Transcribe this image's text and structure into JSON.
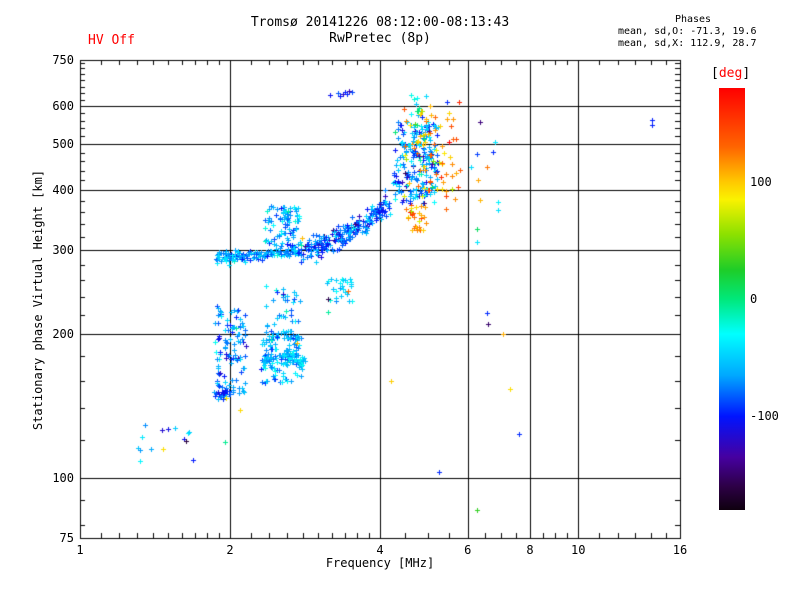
{
  "header": {
    "hv_status": "HV Off",
    "title_line1": "Tromsø 20141226 08:12:00-08:13:43",
    "title_line2": "RwPretec (8p)",
    "phases_heading": "Phases",
    "phases_o": "mean, sd,O: -71.3, 19.6",
    "phases_x": "mean, sd,X: 112.9, 28.7"
  },
  "colors": {
    "hv_status": "#ff0000",
    "axis": "#000000",
    "background": "#ffffff",
    "colorbar_label": "#ff0000"
  },
  "chart_data": {
    "type": "scatter",
    "title": "Tromsø 20141226 08:12:00-08:13:43",
    "subtitle": "RwPretec (8p)",
    "xlabel": "Frequency [MHz]",
    "ylabel": "Stationary phase Virtual Height [km]",
    "x_scale": "log",
    "y_scale": "log",
    "xlim": [
      1,
      16
    ],
    "ylim": [
      75,
      750
    ],
    "x_major_ticks": [
      1,
      2,
      4,
      6,
      8,
      10,
      16
    ],
    "x_gridlines": [
      2,
      4,
      6,
      8,
      10
    ],
    "x_minor_ticks": [
      1.1,
      1.2,
      1.3,
      1.4,
      1.5,
      1.6,
      1.7,
      1.8,
      1.9,
      2.2,
      2.4,
      2.6,
      2.8,
      3.0,
      3.2,
      3.4,
      3.6,
      3.8,
      4.5,
      5.0,
      5.5,
      6.5,
      7.0,
      7.5,
      8.5,
      9.0,
      9.5,
      11,
      12,
      13,
      14,
      15
    ],
    "y_major_ticks": [
      750,
      600,
      500,
      400,
      300,
      200,
      100,
      75
    ],
    "y_gridlines": [
      600,
      500,
      400,
      300,
      200,
      100
    ],
    "y_minor_ticks": [
      80,
      90,
      120,
      140,
      160,
      180,
      220,
      240,
      260,
      280,
      320,
      340,
      360,
      380,
      420,
      440,
      460,
      480,
      520,
      540,
      560,
      580,
      620,
      640,
      660,
      680,
      700,
      720,
      740
    ],
    "grid": true,
    "marker": "plus",
    "color_value": "phase [deg]",
    "stats": {
      "o_mean": -71.3,
      "o_sd": 19.6,
      "x_mean": 112.9,
      "x_sd": 28.7
    },
    "colorbar": {
      "label_open": "[",
      "label_text": "deg",
      "label_close": "]",
      "range": [
        -180,
        180
      ],
      "ticks": [
        100,
        0,
        -100
      ],
      "stops": [
        {
          "v": 180,
          "c": "#ff0000"
        },
        {
          "v": 130,
          "c": "#ff6400"
        },
        {
          "v": 100,
          "c": "#ffc800"
        },
        {
          "v": 85,
          "c": "#faf200"
        },
        {
          "v": 55,
          "c": "#8ce100"
        },
        {
          "v": 25,
          "c": "#1ecd28"
        },
        {
          "v": 0,
          "c": "#00e87a"
        },
        {
          "v": -30,
          "c": "#00ffff"
        },
        {
          "v": -65,
          "c": "#00a8ff"
        },
        {
          "v": -100,
          "c": "#0014ff"
        },
        {
          "v": -135,
          "c": "#4600a0"
        },
        {
          "v": -160,
          "c": "#2d0046"
        },
        {
          "v": -180,
          "c": "#0f000f"
        }
      ]
    },
    "clusters": [
      {
        "id": "f-trace-flat",
        "type": "trace",
        "pts": [
          [
            1.86,
            291
          ],
          [
            2.05,
            292
          ],
          [
            2.3,
            294
          ],
          [
            2.55,
            297
          ],
          [
            2.75,
            301
          ]
        ],
        "n": 150,
        "h_sd": 4,
        "phase_mean": -68,
        "phase_sd": 22
      },
      {
        "id": "f-trace-rise",
        "type": "trace",
        "pts": [
          [
            2.75,
            301
          ],
          [
            3.0,
            308
          ],
          [
            3.25,
            318
          ],
          [
            3.5,
            331
          ],
          [
            3.75,
            345
          ],
          [
            3.95,
            358
          ],
          [
            4.15,
            372
          ]
        ],
        "n": 240,
        "h_sd": 9,
        "phase_mean": -85,
        "phase_sd": 28
      },
      {
        "id": "blob-above-band",
        "type": "blob",
        "f": [
          2.33,
          2.76
        ],
        "h": [
          306,
          372
        ],
        "n": 85,
        "phase_mean": -60,
        "phase_sd": 22
      },
      {
        "id": "f2-spread-o",
        "type": "blob",
        "f": [
          4.25,
          5.25
        ],
        "h": [
          375,
          560
        ],
        "n": 200,
        "phase_mean": -72,
        "phase_sd": 30
      },
      {
        "id": "f2-spread-x",
        "type": "blob",
        "f": [
          4.45,
          5.8
        ],
        "h": [
          360,
          615
        ],
        "n": 70,
        "phase_mean": 113,
        "phase_sd": 30
      },
      {
        "id": "x-cusp",
        "type": "blob",
        "f": [
          4.5,
          4.95
        ],
        "h": [
          330,
          372
        ],
        "n": 30,
        "phase_mean": 108,
        "phase_sd": 18
      },
      {
        "id": "topside-spike",
        "type": "blob",
        "f": [
          4.6,
          4.87
        ],
        "h": [
          450,
          645
        ],
        "n": 26,
        "phase_mean": -45,
        "phase_sd": 35
      },
      {
        "id": "topside-spike-x",
        "type": "blob",
        "f": [
          4.62,
          4.95
        ],
        "h": [
          470,
          600
        ],
        "n": 7,
        "phase_mean": 100,
        "phase_sd": 15
      },
      {
        "id": "topside-streak",
        "type": "trace",
        "pts": [
          [
            3.17,
            628
          ],
          [
            3.62,
            655
          ]
        ],
        "n": 8,
        "h_sd": 4,
        "phase_mean": -105,
        "phase_sd": 18
      },
      {
        "id": "e-left",
        "type": "blob",
        "f": [
          1.86,
          2.17
        ],
        "h": [
          150,
          212
        ],
        "n": 80,
        "phase_mean": -75,
        "phase_sd": 26
      },
      {
        "id": "e-left-streak",
        "type": "trace",
        "pts": [
          [
            1.87,
            149
          ],
          [
            2.0,
            152
          ]
        ],
        "n": 22,
        "h_sd": 2,
        "phase_mean": -88,
        "phase_sd": 18
      },
      {
        "id": "e-mid-arc1",
        "type": "trace",
        "pts": [
          [
            2.32,
            175
          ],
          [
            2.5,
            181
          ],
          [
            2.68,
            180
          ],
          [
            2.8,
            174
          ]
        ],
        "n": 90,
        "h_sd": 3,
        "phase_mean": -52,
        "phase_sd": 16
      },
      {
        "id": "e-mid-arc2",
        "type": "trace",
        "pts": [
          [
            2.35,
            196
          ],
          [
            2.55,
            201
          ],
          [
            2.75,
            197
          ]
        ],
        "n": 45,
        "h_sd": 3,
        "phase_mean": -58,
        "phase_sd": 18
      },
      {
        "id": "e-mid-fill",
        "type": "blob",
        "f": [
          2.3,
          2.85
        ],
        "h": [
          158,
          206
        ],
        "n": 60,
        "phase_mean": -60,
        "phase_sd": 22
      },
      {
        "id": "e-upper-left",
        "type": "blob",
        "f": [
          1.83,
          2.2
        ],
        "h": [
          205,
          232
        ],
        "n": 22,
        "phase_mean": -72,
        "phase_sd": 24
      },
      {
        "id": "e-upper-mid",
        "type": "blob",
        "f": [
          2.35,
          2.8
        ],
        "h": [
          208,
          252
        ],
        "n": 30,
        "phase_mean": -62,
        "phase_sd": 22
      },
      {
        "id": "cyan-cluster-3mhz",
        "type": "blob",
        "f": [
          3.12,
          3.52
        ],
        "h": [
          234,
          262
        ],
        "n": 26,
        "phase_mean": -48,
        "phase_sd": 18
      },
      {
        "id": "low-left-sparse",
        "type": "blob",
        "f": [
          1.3,
          1.7
        ],
        "h": [
          108,
          130
        ],
        "n": 14,
        "phase_mean": -70,
        "phase_sd": 30
      }
    ],
    "singles": [
      [
        14.05,
        562,
        -98
      ],
      [
        14.05,
        549,
        -98
      ],
      [
        6.35,
        557,
        -145
      ],
      [
        6.8,
        506,
        -40
      ],
      [
        6.27,
        478,
        -90
      ],
      [
        6.75,
        482,
        -95
      ],
      [
        6.1,
        447,
        -45
      ],
      [
        6.56,
        448,
        125
      ],
      [
        6.3,
        420,
        110
      ],
      [
        6.35,
        382,
        105
      ],
      [
        6.9,
        378,
        -35
      ],
      [
        6.9,
        365,
        -42
      ],
      [
        6.25,
        332,
        8
      ],
      [
        6.25,
        312,
        -40
      ],
      [
        6.55,
        222,
        -95
      ],
      [
        6.6,
        210,
        -150
      ],
      [
        7.05,
        200,
        108
      ],
      [
        4.2,
        160,
        98
      ],
      [
        7.3,
        154,
        92
      ],
      [
        7.6,
        124,
        -95
      ],
      [
        6.26,
        86,
        30
      ],
      [
        5.25,
        103,
        -95
      ],
      [
        2.49,
        245,
        -95
      ],
      [
        3.45,
        247,
        128
      ],
      [
        3.15,
        237,
        -158
      ],
      [
        3.15,
        223,
        -8
      ],
      [
        2.79,
        318,
        104
      ],
      [
        2.73,
        192,
        106
      ],
      [
        1.96,
        147,
        88
      ],
      [
        2.09,
        139,
        94
      ],
      [
        1.47,
        115,
        92
      ],
      [
        1.95,
        119,
        -5
      ],
      [
        5.15,
        570,
        130
      ],
      [
        5.5,
        580,
        95
      ],
      [
        5.6,
        565,
        115
      ],
      [
        5.45,
        612,
        -95
      ],
      [
        4.95,
        630,
        -45
      ],
      [
        5.05,
        600,
        105
      ],
      [
        5.55,
        545,
        140
      ]
    ]
  }
}
